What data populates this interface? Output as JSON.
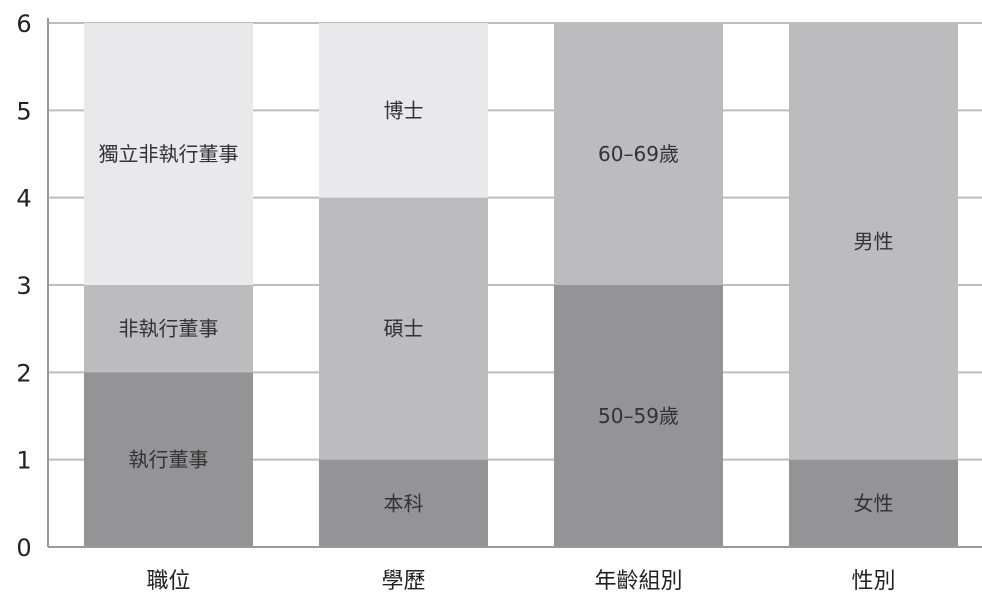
{
  "chart_data": {
    "type": "bar",
    "stacked": true,
    "categories": [
      "職位",
      "學歷",
      "年齡組別",
      "性別"
    ],
    "ylim": [
      0,
      6
    ],
    "yticks": [
      0,
      1,
      2,
      3,
      4,
      5,
      6
    ],
    "grid": true,
    "stacks": [
      {
        "category": "職位",
        "segments": [
          {
            "label": "執行董事",
            "value": 2,
            "color": "#949496"
          },
          {
            "label": "非執行董事",
            "value": 1,
            "color": "#bcbcbf"
          },
          {
            "label": "獨立非執行董事",
            "value": 3,
            "color": "#e9e9eb"
          }
        ]
      },
      {
        "category": "學歷",
        "segments": [
          {
            "label": "本科",
            "value": 1,
            "color": "#949496"
          },
          {
            "label": "碩士",
            "value": 3,
            "color": "#bcbcbf"
          },
          {
            "label": "博士",
            "value": 2,
            "color": "#e9e9eb"
          }
        ]
      },
      {
        "category": "年齡組別",
        "segments": [
          {
            "label": "50–59歲",
            "value": 3,
            "color": "#949496"
          },
          {
            "label": "60–69歲",
            "value": 3,
            "color": "#bcbcbf"
          }
        ]
      },
      {
        "category": "性別",
        "segments": [
          {
            "label": "女性",
            "value": 1,
            "color": "#949496"
          },
          {
            "label": "男性",
            "value": 5,
            "color": "#bcbcbf"
          }
        ]
      }
    ]
  },
  "colors": {
    "grid": "#bdbdbd",
    "axis": "#9a9a9a",
    "text": "#222222"
  }
}
